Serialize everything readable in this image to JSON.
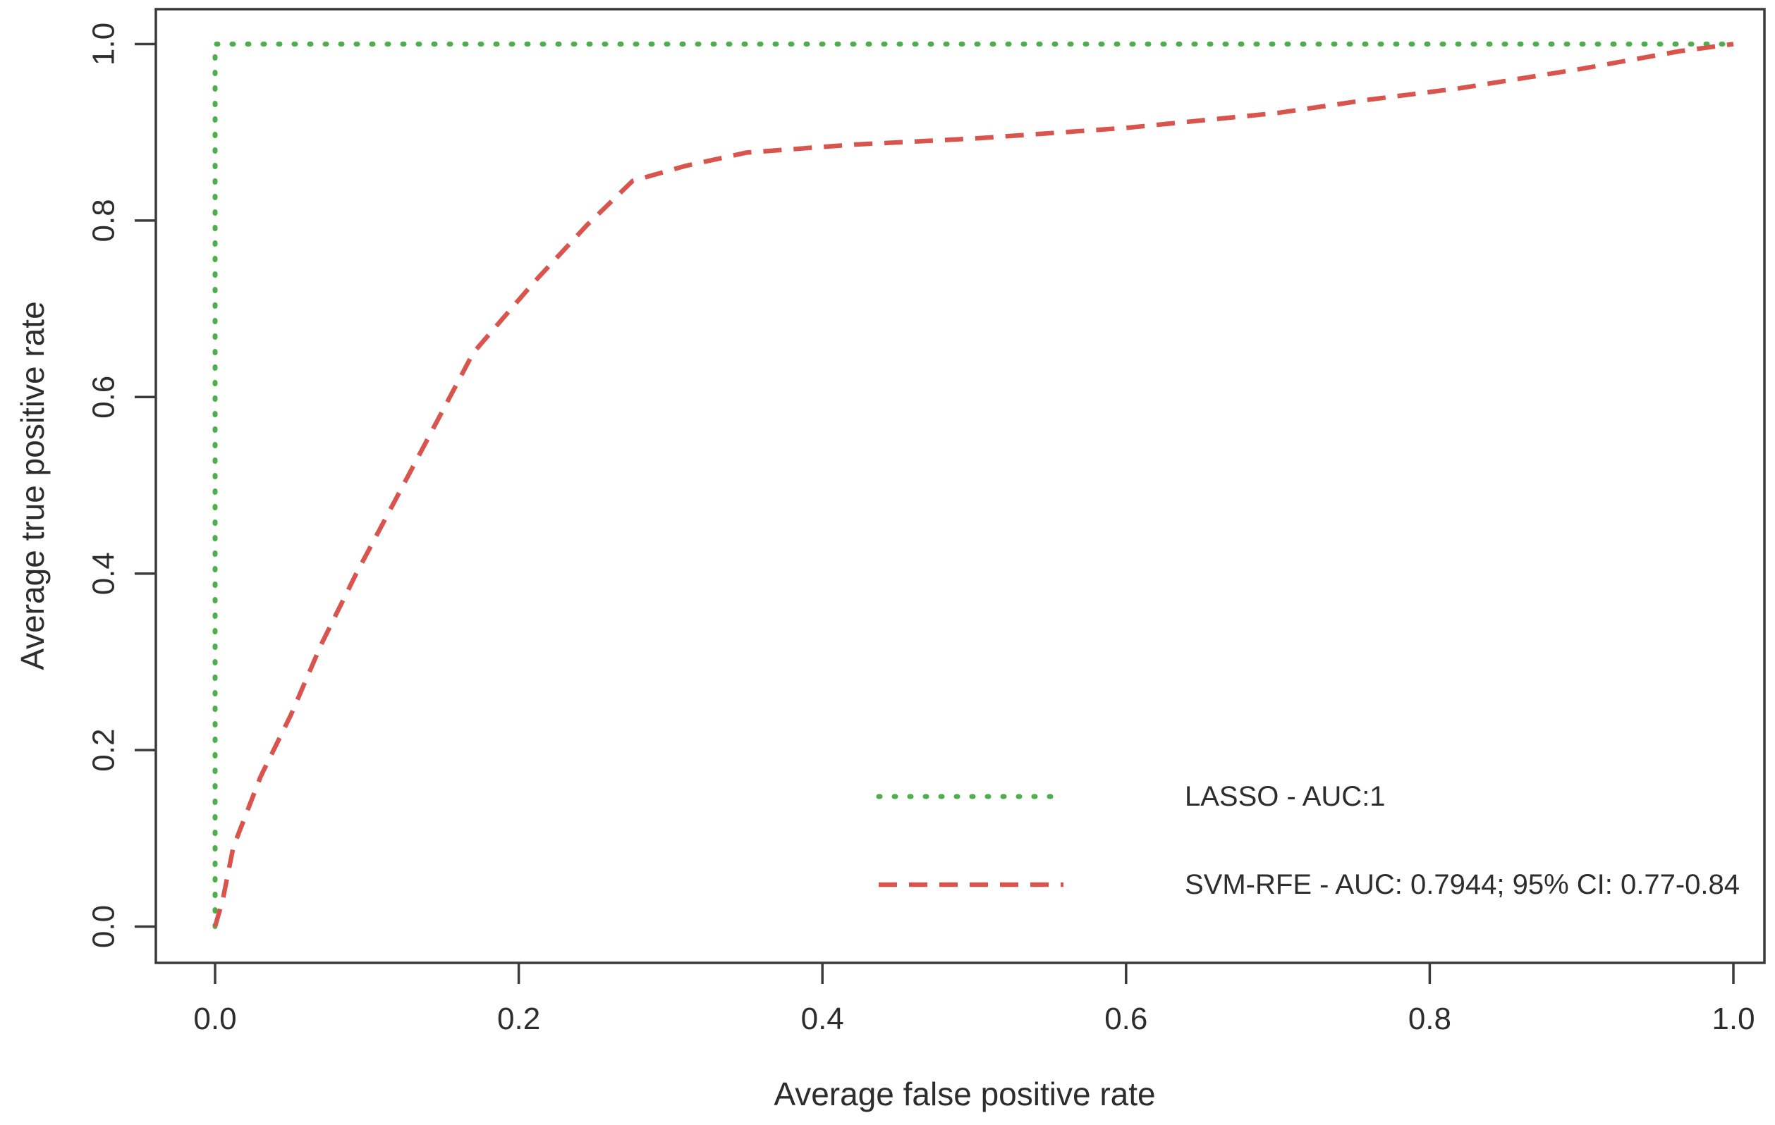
{
  "chart_data": {
    "type": "line",
    "title": "",
    "xlabel": "Average false positive rate",
    "ylabel": "Average true positive rate",
    "xlim": [
      0.0,
      1.0
    ],
    "ylim": [
      0.0,
      1.0
    ],
    "x_ticks": [
      "0.0",
      "0.2",
      "0.4",
      "0.6",
      "0.8",
      "1.0"
    ],
    "y_ticks": [
      "0.0",
      "0.2",
      "0.4",
      "0.6",
      "0.8",
      "1.0"
    ],
    "grid": false,
    "legend_position": "inside-lower-right",
    "series": [
      {
        "name": "LASSO",
        "legend_label": "LASSO - AUC:1",
        "auc": 1,
        "color": "#4daf4a",
        "line_style": "dotted",
        "points": [
          [
            0,
            0
          ],
          [
            0,
            1
          ],
          [
            1,
            1
          ]
        ]
      },
      {
        "name": "SVM-RFE",
        "legend_label": "SVM-RFE - AUC: 0.7944; 95% CI: 0.77-0.84",
        "auc": 0.7944,
        "ci_95": "0.77-0.84",
        "color": "#d9544d",
        "line_style": "dashed",
        "points": [
          [
            0,
            0
          ],
          [
            0.005,
            0.03
          ],
          [
            0.012,
            0.09
          ],
          [
            0.03,
            0.17
          ],
          [
            0.05,
            0.24
          ],
          [
            0.07,
            0.32
          ],
          [
            0.093,
            0.4
          ],
          [
            0.13,
            0.52
          ],
          [
            0.17,
            0.65
          ],
          [
            0.21,
            0.73
          ],
          [
            0.245,
            0.795
          ],
          [
            0.275,
            0.845
          ],
          [
            0.31,
            0.862
          ],
          [
            0.35,
            0.877
          ],
          [
            0.42,
            0.886
          ],
          [
            0.5,
            0.893
          ],
          [
            0.6,
            0.905
          ],
          [
            0.7,
            0.922
          ],
          [
            0.76,
            0.937
          ],
          [
            0.82,
            0.95
          ],
          [
            0.9,
            0.972
          ],
          [
            0.965,
            0.992
          ],
          [
            1,
            1
          ]
        ]
      }
    ]
  }
}
